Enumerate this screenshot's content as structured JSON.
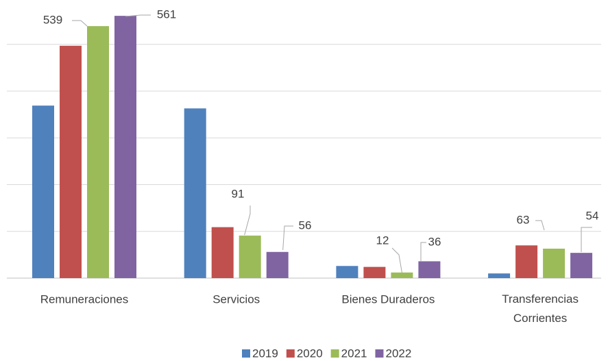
{
  "chart_data": {
    "type": "bar",
    "categories": [
      "Remuneraciones",
      "Servicios",
      "Bienes Duraderos",
      "Transferencias Corrientes"
    ],
    "series": [
      {
        "name": "2019",
        "color": "#4f81bd",
        "values": [
          369,
          363,
          26,
          10
        ],
        "value_labels": [
          null,
          null,
          null,
          null
        ]
      },
      {
        "name": "2020",
        "color": "#c0504d",
        "values": [
          497,
          109,
          24,
          70
        ],
        "value_labels": [
          null,
          null,
          null,
          null
        ]
      },
      {
        "name": "2021",
        "color": "#9bbb59",
        "values": [
          539,
          91,
          12,
          63
        ],
        "value_labels": [
          539,
          91,
          12,
          63
        ]
      },
      {
        "name": "2022",
        "color": "#8064a2",
        "values": [
          561,
          56,
          36,
          54
        ],
        "value_labels": [
          561,
          56,
          36,
          54
        ]
      }
    ],
    "ylim": [
      0,
      600
    ],
    "yticks": [
      0,
      100,
      200,
      300,
      400,
      500
    ],
    "grid": true,
    "legend": "bottom"
  }
}
